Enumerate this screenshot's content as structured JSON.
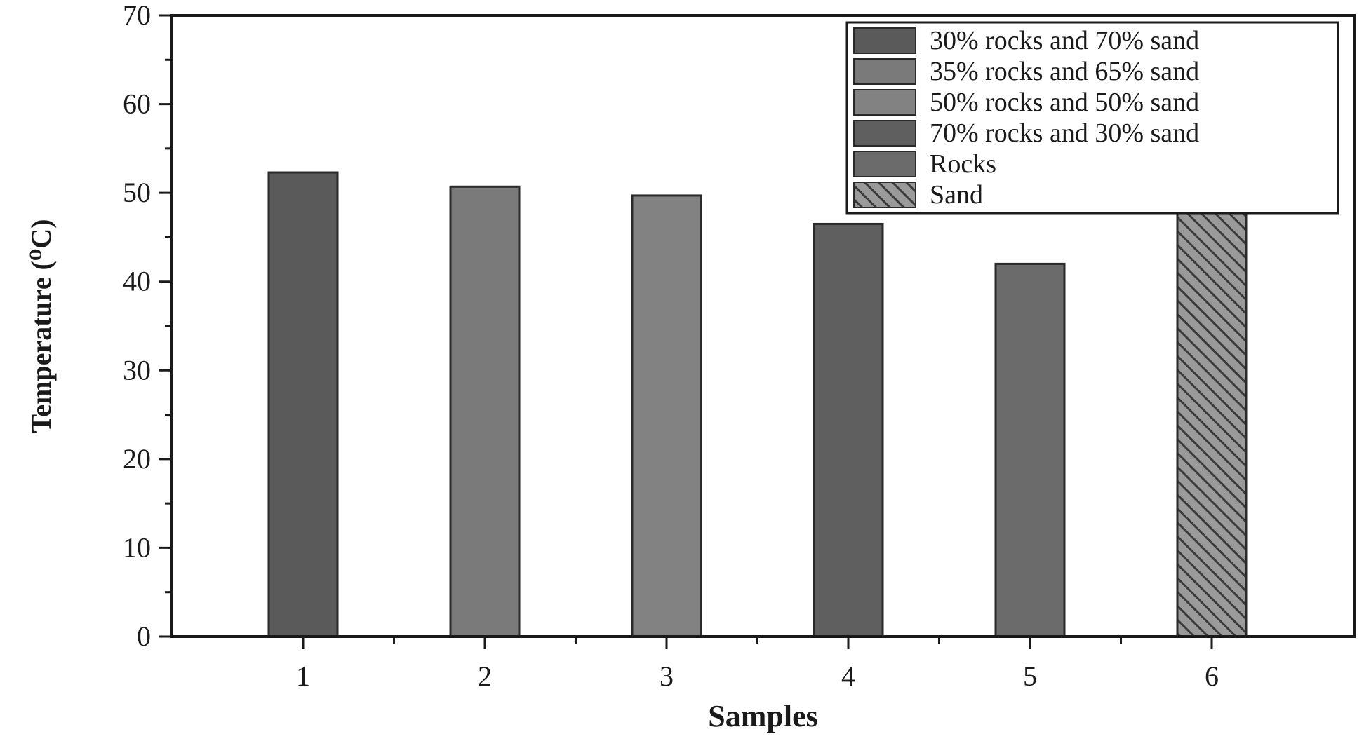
{
  "chart_data": {
    "type": "bar",
    "categories": [
      "1",
      "2",
      "3",
      "4",
      "5",
      "6"
    ],
    "values": [
      52.3,
      50.7,
      49.7,
      46.5,
      42.0,
      48.5
    ],
    "xlabel": "Samples",
    "ylabel": "Temperature (⁰C)",
    "ylim": [
      0,
      70
    ],
    "yticks": [
      0,
      10,
      20,
      30,
      40,
      50,
      60,
      70
    ],
    "grid": false,
    "legend_position": "top-right",
    "series": [
      {
        "name": "30% rocks and 70% sand",
        "color": "#5a5a5a",
        "pattern": "solid"
      },
      {
        "name": "35% rocks and 65% sand",
        "color": "#7a7a7a",
        "pattern": "solid"
      },
      {
        "name": "50% rocks and 50% sand",
        "color": "#828282",
        "pattern": "solid"
      },
      {
        "name": "70% rocks and 30% sand",
        "color": "#5f5f5f",
        "pattern": "solid"
      },
      {
        "name": "Rocks",
        "color": "#6b6b6b",
        "pattern": "solid"
      },
      {
        "name": "Sand",
        "color": "#8a8a8a",
        "pattern": "hatch"
      }
    ]
  }
}
